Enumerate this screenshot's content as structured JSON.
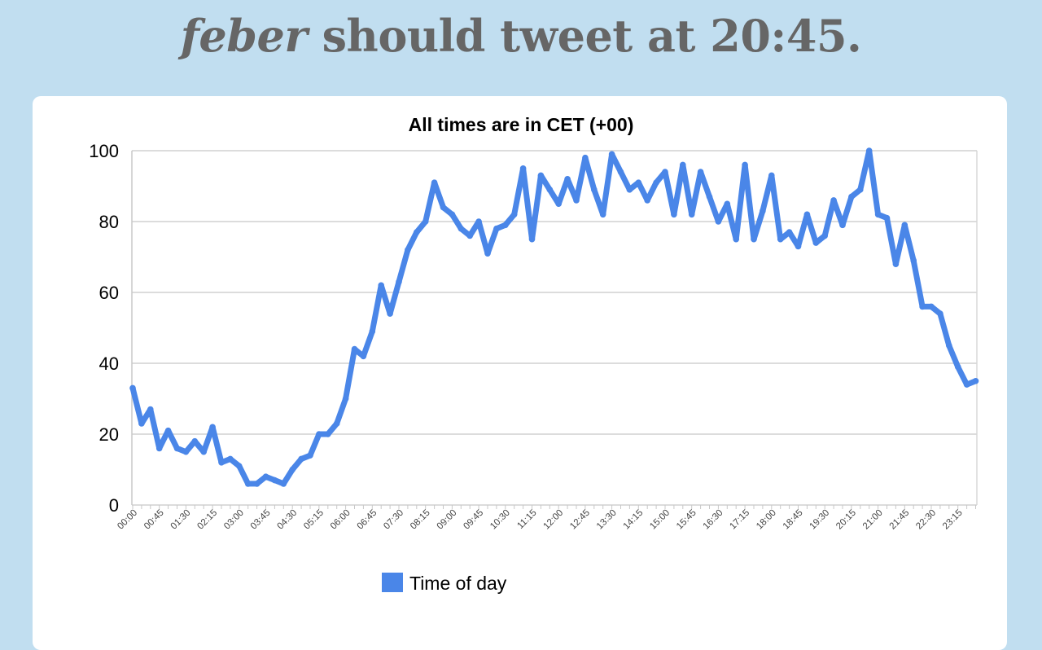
{
  "headline": {
    "user": "feber",
    "text": "should tweet at 20:45."
  },
  "colors": {
    "background": "#c1def0",
    "line": "#4a86e8",
    "headline": "#666666"
  },
  "chart_data": {
    "type": "line",
    "title": "All times are in CET (+00)",
    "xlabel": "",
    "ylabel": "",
    "ylim": [
      0,
      100
    ],
    "yticks": [
      0,
      20,
      40,
      60,
      80,
      100
    ],
    "grid": true,
    "legend": "bottom",
    "x": [
      "00:00",
      "00:15",
      "00:30",
      "00:45",
      "01:00",
      "01:15",
      "01:30",
      "01:45",
      "02:00",
      "02:15",
      "02:30",
      "02:45",
      "03:00",
      "03:15",
      "03:30",
      "03:45",
      "04:00",
      "04:15",
      "04:30",
      "04:45",
      "05:00",
      "05:15",
      "05:30",
      "05:45",
      "06:00",
      "06:15",
      "06:30",
      "06:45",
      "07:00",
      "07:15",
      "07:30",
      "07:45",
      "08:00",
      "08:15",
      "08:30",
      "08:45",
      "09:00",
      "09:15",
      "09:30",
      "09:45",
      "10:00",
      "10:15",
      "10:30",
      "10:45",
      "11:00",
      "11:15",
      "11:30",
      "11:45",
      "12:00",
      "12:15",
      "12:30",
      "12:45",
      "13:00",
      "13:15",
      "13:30",
      "13:45",
      "14:00",
      "14:15",
      "14:30",
      "14:45",
      "15:00",
      "15:15",
      "15:30",
      "15:45",
      "16:00",
      "16:15",
      "16:30",
      "16:45",
      "17:00",
      "17:15",
      "17:30",
      "17:45",
      "18:00",
      "18:15",
      "18:30",
      "18:45",
      "19:00",
      "19:15",
      "19:30",
      "19:45",
      "20:00",
      "20:15",
      "20:30",
      "20:45",
      "21:00",
      "21:15",
      "21:30",
      "21:45",
      "22:00",
      "22:15",
      "22:30",
      "22:45",
      "23:00",
      "23:15",
      "23:30",
      "23:45"
    ],
    "xtick_labels": [
      "00:00",
      "00:45",
      "01:30",
      "02:15",
      "03:00",
      "03:45",
      "04:30",
      "05:15",
      "06:00",
      "06:45",
      "07:30",
      "08:15",
      "09:00",
      "09:45",
      "10:30",
      "11:15",
      "12:00",
      "12:45",
      "13:30",
      "14:15",
      "15:00",
      "15:45",
      "16:30",
      "17:15",
      "18:00",
      "18:45",
      "19:30",
      "20:15",
      "21:00",
      "21:45",
      "22:30",
      "23:15"
    ],
    "series": [
      {
        "name": "Time of day",
        "color": "#4a86e8",
        "values": [
          33,
          23,
          27,
          16,
          21,
          16,
          15,
          18,
          15,
          22,
          12,
          13,
          11,
          6,
          6,
          8,
          7,
          6,
          10,
          13,
          14,
          20,
          20,
          23,
          30,
          44,
          42,
          49,
          62,
          54,
          63,
          72,
          77,
          80,
          91,
          84,
          82,
          78,
          76,
          80,
          71,
          78,
          79,
          82,
          95,
          75,
          93,
          89,
          85,
          92,
          86,
          98,
          89,
          82,
          99,
          94,
          89,
          91,
          86,
          91,
          94,
          82,
          96,
          82,
          94,
          87,
          80,
          85,
          75,
          96,
          75,
          83,
          93,
          75,
          77,
          73,
          82,
          74,
          76,
          86,
          79,
          87,
          89,
          100,
          82,
          81,
          68,
          79,
          69,
          56,
          56,
          54,
          45,
          39,
          34,
          35
        ]
      }
    ]
  }
}
